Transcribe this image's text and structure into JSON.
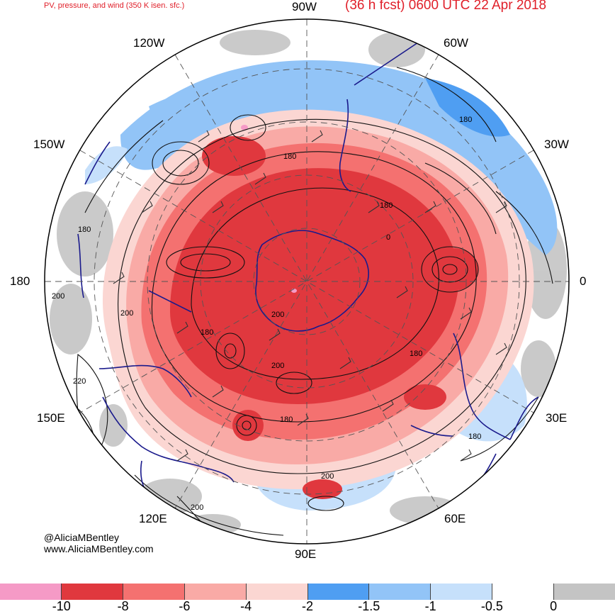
{
  "header": {
    "left_title": "PV, pressure, and wind (350 K isen. sfc.)",
    "right_title": "(36 h fcst) 0600 UTC 22 Apr 2018"
  },
  "longitude_labels": {
    "top": "90W",
    "upper_left": "120W",
    "upper_right": "60W",
    "left_upper": "150W",
    "right_upper": "30W",
    "left": "180",
    "right": "0",
    "left_lower": "150E",
    "right_lower": "30E",
    "lower_left": "120E",
    "lower_right": "60E",
    "bottom": "90E"
  },
  "contour_labels": [
    "180",
    "180",
    "180",
    "180",
    "180",
    "180",
    "180",
    "180",
    "200",
    "200",
    "200",
    "200",
    "200",
    "200",
    "220",
    "0"
  ],
  "credits": {
    "handle": "@AliciaMBentley",
    "website": "www.AliciaMBentley.com"
  },
  "colorbar": {
    "colors": [
      "#f59ac6",
      "#e0383e",
      "#f47170",
      "#f9aaa6",
      "#fbd6d2",
      "#4f9ef2",
      "#92c4f7",
      "#c6e0fb",
      "#ffffff",
      "#c4c4c4"
    ],
    "tick_labels": [
      "-10",
      "-8",
      "-6",
      "-4",
      "-2",
      "-1.5",
      "-1",
      "-0.5",
      "0"
    ]
  },
  "map_colors": {
    "pv_strong": "#e0383e",
    "pv_mid": "#f47170",
    "pv_light": "#f9aaa6",
    "pv_faint": "#fbd6d2",
    "blue_light": "#c6e0fb",
    "blue_mid": "#92c4f7",
    "grey": "#c4c4c4",
    "coast": "#1a1a8c"
  }
}
